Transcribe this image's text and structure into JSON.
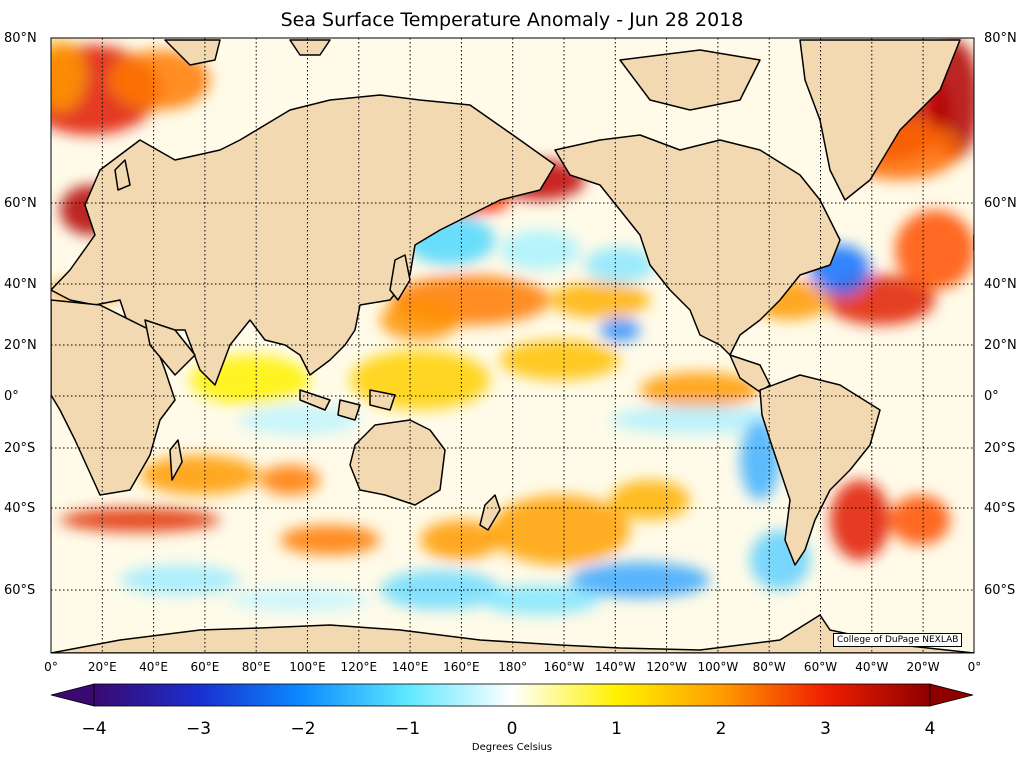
{
  "title": "Sea Surface Temperature Anomaly - Jun 28 2018",
  "lat_labels": [
    "80°N",
    "60°N",
    "40°N",
    "20°N",
    "0°",
    "20°S",
    "40°S",
    "60°S"
  ],
  "lon_labels": [
    "0°",
    "20°E",
    "40°E",
    "60°E",
    "80°E",
    "100°E",
    "120°E",
    "140°E",
    "160°E",
    "180°",
    "160°W",
    "140°W",
    "120°W",
    "100°W",
    "80°W",
    "60°W",
    "40°W",
    "20°W",
    "0°"
  ],
  "colorbar": {
    "min": -4,
    "max": 4,
    "ticks": [
      "−4",
      "−3",
      "−2",
      "−1",
      "0",
      "1",
      "2",
      "3",
      "4"
    ],
    "label": "Degrees Celsius",
    "stops": [
      "#3a0a70",
      "#1a2ecf",
      "#0b8cff",
      "#5ee8ff",
      "#ffffff",
      "#fff200",
      "#ff9d00",
      "#f01e00",
      "#8e0000"
    ]
  },
  "credit": "College of DuPage NEXLAB",
  "colors": {
    "land": "#f2d9b1",
    "coast": "#000000",
    "grid": "#000000"
  }
}
